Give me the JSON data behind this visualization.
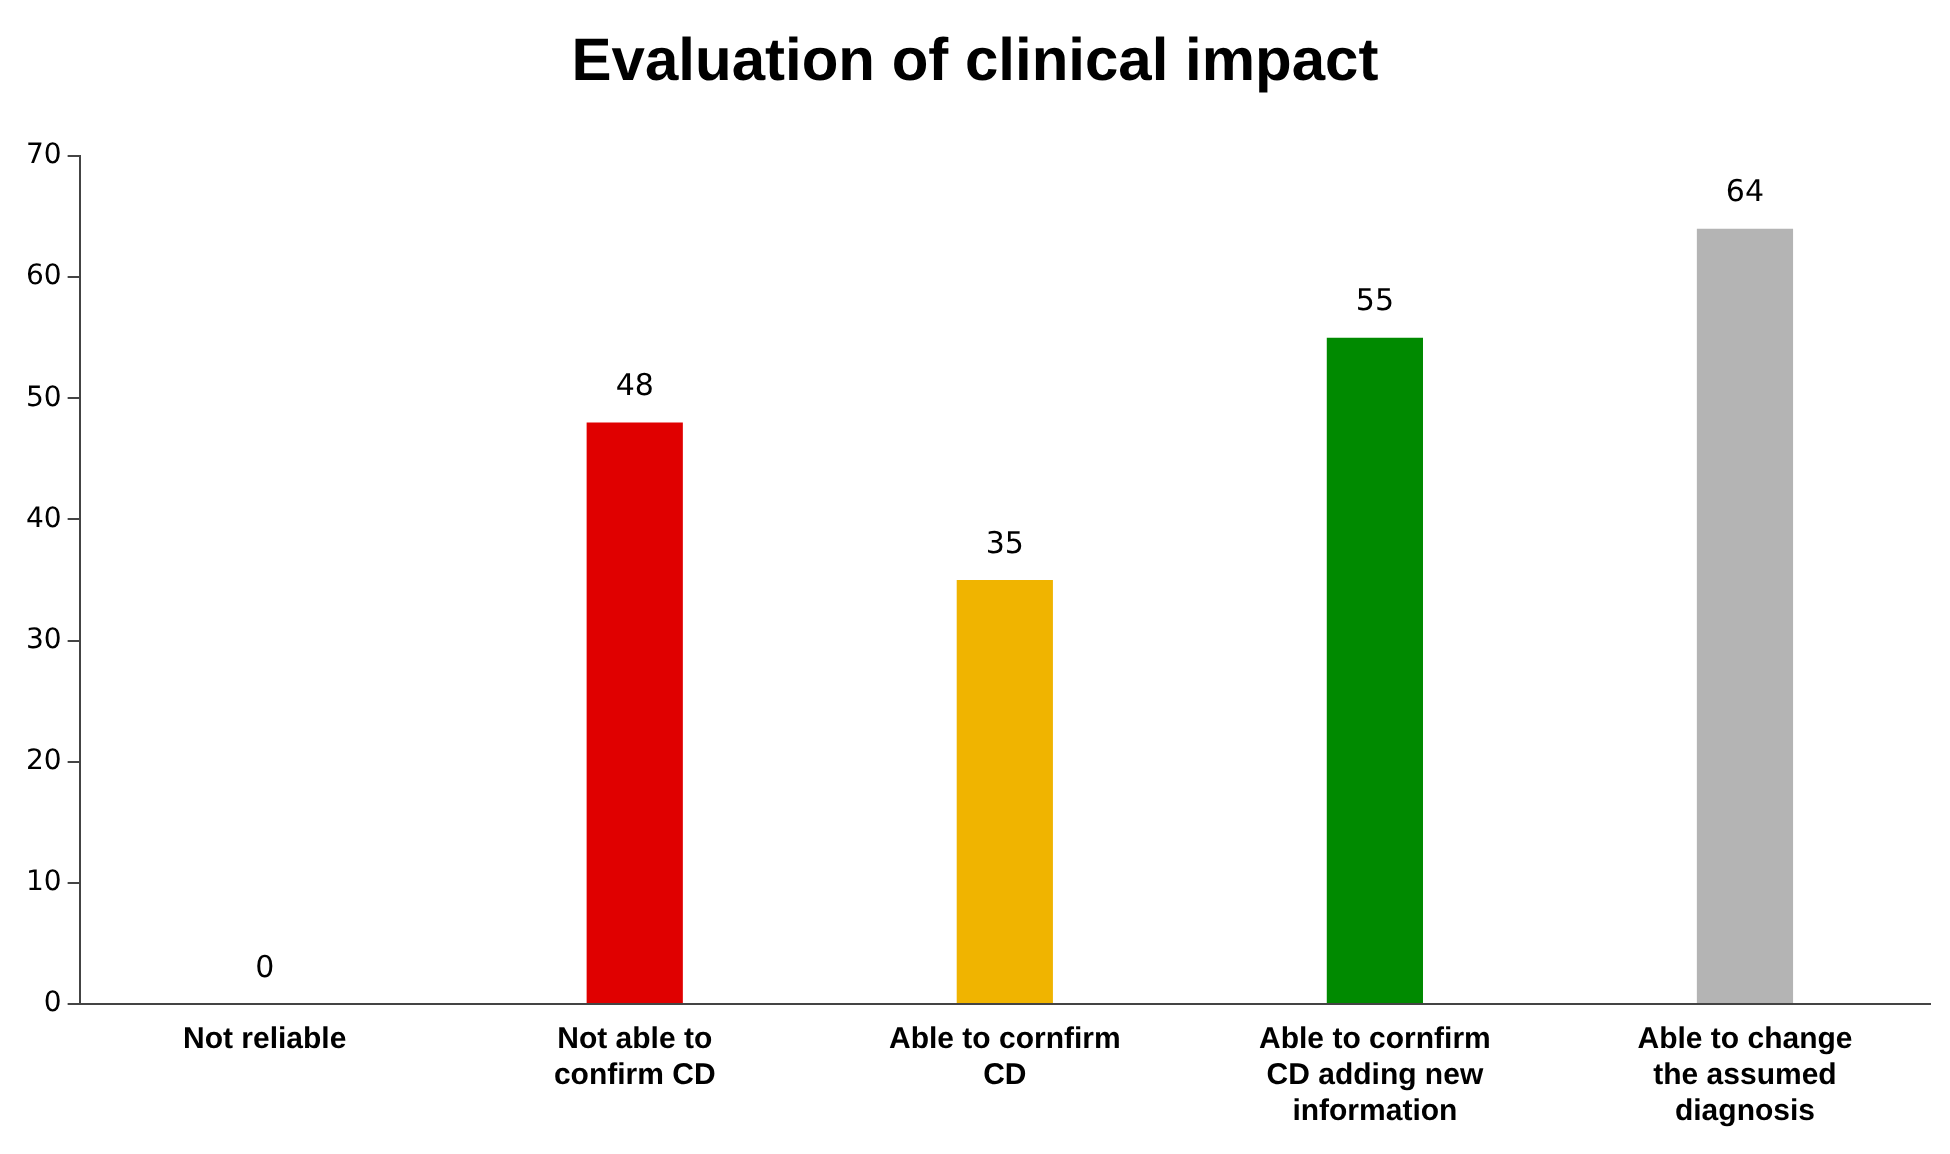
{
  "chart_data": {
    "type": "bar",
    "title": "Evaluation of clinical impact",
    "categories": [
      "Not reliable",
      "Not able to confirm CD",
      "Able to cornfirm CD",
      "Able to cornfirm CD adding new information",
      "Able to change the assumed diagnosis"
    ],
    "values": [
      0,
      48,
      35,
      55,
      64
    ],
    "colors": [
      "#e00000",
      "#e00000",
      "#f0b400",
      "#008a00",
      "#b4b4b4"
    ],
    "ylim": [
      0,
      70
    ],
    "yticks": [
      0,
      10,
      20,
      30,
      40,
      50,
      60,
      70
    ],
    "grid": false,
    "legend": false,
    "data_labels": true
  }
}
